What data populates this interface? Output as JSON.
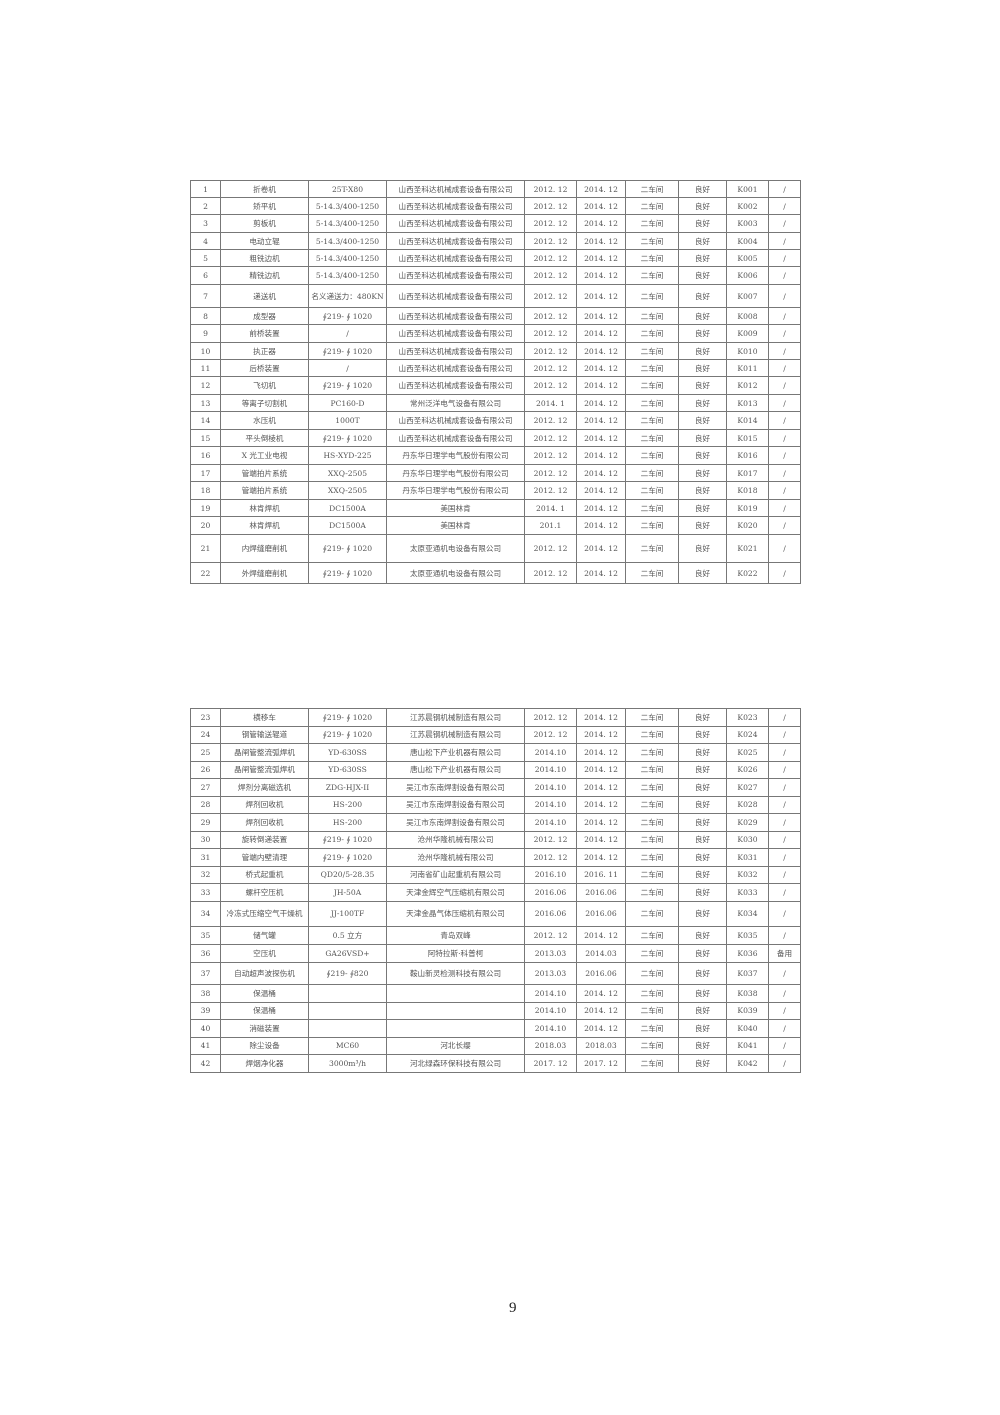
{
  "tables": [
    {
      "rows": [
        [
          "1",
          "折卷机",
          "25T-X80",
          "山西圣科达机械成套设备有限公司",
          "2012. 12",
          "2014. 12",
          "二车间",
          "良好",
          "K001",
          "/"
        ],
        [
          "2",
          "矫平机",
          "5-14.3/400-1250",
          "山西圣科达机械成套设备有限公司",
          "2012. 12",
          "2014. 12",
          "二车间",
          "良好",
          "K002",
          "/"
        ],
        [
          "3",
          "剪板机",
          "5-14.3/400-1250",
          "山西圣科达机械成套设备有限公司",
          "2012. 12",
          "2014. 12",
          "二车间",
          "良好",
          "K003",
          "/"
        ],
        [
          "4",
          "电动立辊",
          "5-14.3/400-1250",
          "山西圣科达机械成套设备有限公司",
          "2012. 12",
          "2014. 12",
          "二车间",
          "良好",
          "K004",
          "/"
        ],
        [
          "5",
          "粗铣边机",
          "5-14.3/400-1250",
          "山西圣科达机械成套设备有限公司",
          "2012. 12",
          "2014. 12",
          "二车间",
          "良好",
          "K005",
          "/"
        ],
        [
          "6",
          "精铣边机",
          "5-14.3/400-1250",
          "山西圣科达机械成套设备有限公司",
          "2012. 12",
          "2014. 12",
          "二车间",
          "良好",
          "K006",
          "/"
        ],
        [
          "7",
          "递送机",
          "名义递送力：480KN",
          "山西圣科达机械成套设备有限公司",
          "2012. 12",
          "2014. 12",
          "二车间",
          "良好",
          "K007",
          "/"
        ],
        [
          "8",
          "成型器",
          "∮219- ∮ 1020",
          "山西圣科达机械成套设备有限公司",
          "2012. 12",
          "2014. 12",
          "二车间",
          "良好",
          "K008",
          "/"
        ],
        [
          "9",
          "前桥装置",
          "/",
          "山西圣科达机械成套设备有限公司",
          "2012. 12",
          "2014. 12",
          "二车间",
          "良好",
          "K009",
          "/"
        ],
        [
          "10",
          "执正器",
          "∮219- ∮ 1020",
          "山西圣科达机械成套设备有限公司",
          "2012. 12",
          "2014. 12",
          "二车间",
          "良好",
          "K010",
          "/"
        ],
        [
          "11",
          "后桥装置",
          "/",
          "山西圣科达机械成套设备有限公司",
          "2012. 12",
          "2014. 12",
          "二车间",
          "良好",
          "K011",
          "/"
        ],
        [
          "12",
          "飞切机",
          "∮219- ∮ 1020",
          "山西圣科达机械成套设备有限公司",
          "2012. 12",
          "2014. 12",
          "二车间",
          "良好",
          "K012",
          "/"
        ],
        [
          "13",
          "等离子切割机",
          "PC160-D",
          "常州泛洋电气设备有限公司",
          "2014. 1",
          "2014. 12",
          "二车间",
          "良好",
          "K013",
          "/"
        ],
        [
          "14",
          "水压机",
          "1000T",
          "山西圣科达机械成套设备有限公司",
          "2012. 12",
          "2014. 12",
          "二车间",
          "良好",
          "K014",
          "/"
        ],
        [
          "15",
          "平头倒棱机",
          "∮219- ∮ 1020",
          "山西圣科达机械成套设备有限公司",
          "2012. 12",
          "2014. 12",
          "二车间",
          "良好",
          "K015",
          "/"
        ],
        [
          "16",
          "X 光工业电视",
          "HS-XYD-225",
          "丹东华日理学电气股份有限公司",
          "2012. 12",
          "2014. 12",
          "二车间",
          "良好",
          "K016",
          "/"
        ],
        [
          "17",
          "管端拍片系统",
          "XXQ-2505",
          "丹东华日理学电气股份有限公司",
          "2012. 12",
          "2014. 12",
          "二车间",
          "良好",
          "K017",
          "/"
        ],
        [
          "18",
          "管端拍片系统",
          "XXQ-2505",
          "丹东华日理学电气股份有限公司",
          "2012. 12",
          "2014. 12",
          "二车间",
          "良好",
          "K018",
          "/"
        ],
        [
          "19",
          "林肯焊机",
          "DC1500A",
          "美国林肯",
          "2014. 1",
          "2014. 12",
          "二车间",
          "良好",
          "K019",
          "/"
        ],
        [
          "20",
          "林肯焊机",
          "DC1500A",
          "美国林肯",
          "201.1",
          "2014. 12",
          "二车间",
          "良好",
          "K020",
          "/"
        ],
        [
          "21",
          "内焊缝磨削机",
          "∮219- ∮ 1020",
          "太原亚通机电设备有限公司",
          "2012. 12",
          "2014. 12",
          "二车间",
          "良好",
          "K021",
          "/"
        ],
        [
          "22",
          "外焊缝磨削机",
          "∮219- ∮ 1020",
          "太原亚通机电设备有限公司",
          "2012. 12",
          "2014. 12",
          "二车间",
          "良好",
          "K022",
          "/"
        ]
      ]
    },
    {
      "rows": [
        [
          "23",
          "横移车",
          "∮219- ∮ 1020",
          "江苏晨钢机械制造有限公司",
          "2012. 12",
          "2014. 12",
          "二车间",
          "良好",
          "K023",
          "/"
        ],
        [
          "24",
          "钢管输送辊道",
          "∮219- ∮ 1020",
          "江苏晨钢机械制造有限公司",
          "2012. 12",
          "2014. 12",
          "二车间",
          "良好",
          "K024",
          "/"
        ],
        [
          "25",
          "晶闸管整流弧焊机",
          "YD-630SS",
          "唐山松下产业机器有限公司",
          "2014.10",
          "2014. 12",
          "二车间",
          "良好",
          "K025",
          "/"
        ],
        [
          "26",
          "晶闸管整流弧焊机",
          "YD-630SS",
          "唐山松下产业机器有限公司",
          "2014.10",
          "2014. 12",
          "二车间",
          "良好",
          "K026",
          "/"
        ],
        [
          "27",
          "焊剂分离磁选机",
          "ZDG-HJX-II",
          "吴江市东南焊割设备有限公司",
          "2014.10",
          "2014. 12",
          "二车间",
          "良好",
          "K027",
          "/"
        ],
        [
          "28",
          "焊剂回收机",
          "HS-200",
          "吴江市东南焊割设备有限公司",
          "2014.10",
          "2014. 12",
          "二车间",
          "良好",
          "K028",
          "/"
        ],
        [
          "29",
          "焊剂回收机",
          "HS-200",
          "吴江市东南焊割设备有限公司",
          "2014.10",
          "2014. 12",
          "二车间",
          "良好",
          "K029",
          "/"
        ],
        [
          "30",
          "旋转倒递装置",
          "∮219- ∮ 1020",
          "沧州华隆机械有限公司",
          "2012. 12",
          "2014. 12",
          "二车间",
          "良好",
          "K030",
          "/"
        ],
        [
          "31",
          "管端内壁清理",
          "∮219- ∮ 1020",
          "沧州华隆机械有限公司",
          "2012. 12",
          "2014. 12",
          "二车间",
          "良好",
          "K031",
          "/"
        ],
        [
          "32",
          "桥式起重机",
          "QD20/5-28.35",
          "河南省矿山起重机有限公司",
          "2016.10",
          "2016. 11",
          "二车间",
          "良好",
          "K032",
          "/"
        ],
        [
          "33",
          "螺杆空压机",
          "JH-50A",
          "天津金辉空气压缩机有限公司",
          "2016.06",
          "2016.06",
          "二车间",
          "良好",
          "K033",
          "/"
        ],
        [
          "34",
          "冷冻式压缩空气干燥机",
          "JJ-100TF",
          "天津金晶气体压缩机有限公司",
          "2016.06",
          "2016.06",
          "二车间",
          "良好",
          "K034",
          "/"
        ],
        [
          "35",
          "储气罐",
          "0.5 立方",
          "青岛双峰",
          "2012. 12",
          "2014. 12",
          "二车间",
          "良好",
          "K035",
          "/"
        ],
        [
          "36",
          "空压机",
          "GA26VSD+",
          "阿特拉斯·科普柯",
          "2013.03",
          "2014.03",
          "二车间",
          "良好",
          "K036",
          "备用"
        ],
        [
          "37",
          "自动超声波探伤机",
          "∮219- ∮820",
          "鞍山新灵检测科技有限公司",
          "2013.03",
          "2016.06",
          "二车间",
          "良好",
          "K037",
          "/"
        ],
        [
          "38",
          "保温桶",
          "",
          "",
          "2014.10",
          "2014. 12",
          "二车间",
          "良好",
          "K038",
          "/"
        ],
        [
          "39",
          "保温桶",
          "",
          "",
          "2014.10",
          "2014. 12",
          "二车间",
          "良好",
          "K039",
          "/"
        ],
        [
          "40",
          "消磁装置",
          "",
          "",
          "2014.10",
          "2014. 12",
          "二车间",
          "良好",
          "K040",
          "/"
        ],
        [
          "41",
          "除尘设备",
          "MC60",
          "河北长缨",
          "2018.03",
          "2018.03",
          "二车间",
          "良好",
          "K041",
          "/"
        ],
        [
          "42",
          "焊烟净化器",
          "3000m³/h",
          "河北绿森环保科技有限公司",
          "2017. 12",
          "2017. 12",
          "二车间",
          "良好",
          "K042",
          "/"
        ]
      ]
    }
  ],
  "page_number": "9"
}
